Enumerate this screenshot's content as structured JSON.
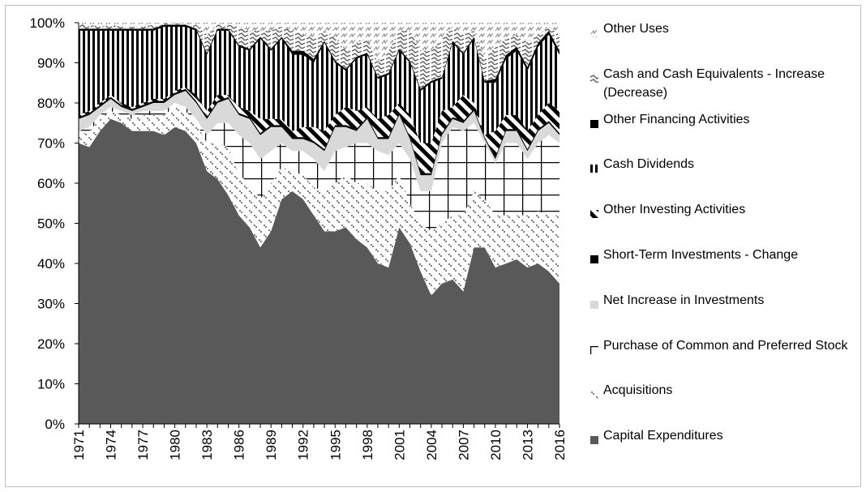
{
  "chart_data": {
    "type": "area",
    "stacked": true,
    "x": [
      1971,
      1972,
      1973,
      1974,
      1975,
      1976,
      1977,
      1978,
      1979,
      1980,
      1981,
      1982,
      1983,
      1984,
      1985,
      1986,
      1987,
      1988,
      1989,
      1990,
      1991,
      1992,
      1993,
      1994,
      1995,
      1996,
      1997,
      1998,
      1999,
      2000,
      2001,
      2002,
      2003,
      2004,
      2005,
      2006,
      2007,
      2008,
      2009,
      2010,
      2011,
      2012,
      2013,
      2014,
      2015,
      2016
    ],
    "xlim": [
      1971,
      2016
    ],
    "xticks": [
      1971,
      1974,
      1977,
      1980,
      1983,
      1986,
      1989,
      1992,
      1995,
      1998,
      2001,
      2004,
      2007,
      2010,
      2013,
      2016
    ],
    "ylim": [
      0,
      100
    ],
    "yticks": [
      {
        "value": 0,
        "label": "0%"
      },
      {
        "value": 10,
        "label": "10%"
      },
      {
        "value": 20,
        "label": "20%"
      },
      {
        "value": 30,
        "label": "30%"
      },
      {
        "value": 40,
        "label": "40%"
      },
      {
        "value": 50,
        "label": "50%"
      },
      {
        "value": 60,
        "label": "60%"
      },
      {
        "value": 70,
        "label": "70%"
      },
      {
        "value": 80,
        "label": "80%"
      },
      {
        "value": 90,
        "label": "90%"
      },
      {
        "value": 100,
        "label": "100%"
      }
    ],
    "legend": "right",
    "series": [
      {
        "name": "Capital Expenditures",
        "color": "#595959",
        "values": [
          70,
          69,
          73,
          76,
          75,
          73,
          73,
          73,
          72,
          74,
          73,
          70,
          63,
          61,
          57,
          52,
          49,
          44,
          48,
          56,
          58,
          56,
          52,
          48,
          48,
          49,
          46,
          44,
          40,
          39,
          49,
          45,
          38,
          32,
          35,
          36,
          33,
          44,
          44,
          39,
          40,
          41,
          39,
          40,
          38,
          35
        ]
      },
      {
        "name": "Acquisitions",
        "color": "#7f7f7f",
        "values": [
          2,
          4,
          3,
          2,
          2,
          3,
          4,
          4,
          5,
          5,
          5,
          5,
          7,
          9,
          12,
          10,
          11,
          12,
          12,
          8,
          5,
          6,
          7,
          10,
          12,
          13,
          14,
          16,
          18,
          19,
          13,
          10,
          12,
          16,
          15,
          16,
          19,
          14,
          12,
          13,
          12,
          11,
          13,
          13,
          14,
          17
        ]
      },
      {
        "name": "Purchase of Common and Preferred Stock",
        "color": "#000000",
        "values": [
          1,
          1,
          1,
          1,
          1,
          1,
          1,
          1,
          1,
          1,
          1,
          1,
          2,
          5,
          6,
          10,
          10,
          10,
          8,
          6,
          5,
          6,
          7,
          5,
          8,
          7,
          10,
          10,
          10,
          9,
          8,
          11,
          8,
          10,
          20,
          22,
          21,
          17,
          14,
          13,
          18,
          18,
          14,
          17,
          20,
          18
        ]
      },
      {
        "name": "Net Increase in Investments",
        "color": "#d9d9d9",
        "values": [
          3,
          3,
          2,
          2,
          1,
          1,
          1,
          2,
          2,
          2,
          4,
          4,
          4,
          5,
          6,
          5,
          6,
          6,
          6,
          4,
          3,
          3,
          4,
          5,
          6,
          5,
          3,
          6,
          3,
          4,
          7,
          5,
          4,
          4,
          2,
          2,
          2,
          3,
          1,
          1,
          3,
          3,
          2,
          3,
          3,
          2
        ]
      },
      {
        "name": "Short-Term Investments - Change",
        "color": "#000000",
        "values": [
          0.5,
          0.5,
          0.5,
          0.5,
          0.5,
          0.5,
          0.5,
          0.5,
          0.5,
          0.5,
          0.5,
          0.5,
          0.5,
          0.5,
          0.5,
          0.5,
          0.5,
          0.5,
          0.5,
          0.5,
          0.5,
          0.5,
          0.5,
          0.5,
          0.5,
          0.5,
          0.5,
          0.5,
          0.5,
          0.5,
          0.5,
          0.5,
          0.5,
          0.5,
          0.5,
          0.5,
          0.5,
          0.5,
          0.5,
          0.5,
          0.5,
          0.5,
          0.5,
          0.5,
          0.5,
          0.5
        ]
      },
      {
        "name": "Other Investing Activities",
        "color": "#000000",
        "values": [
          0.5,
          0.5,
          0.5,
          0.5,
          0.5,
          0.5,
          0.5,
          0.5,
          0.5,
          0.5,
          0.5,
          1.5,
          1.5,
          1.5,
          0.5,
          1.5,
          1.5,
          3.5,
          1.5,
          1.5,
          1.5,
          2.5,
          3.5,
          4.5,
          2.5,
          4.5,
          4.5,
          2.5,
          4.5,
          5.5,
          2.5,
          5.5,
          7.5,
          7.5,
          5.5,
          2.5,
          6.5,
          1.5,
          0.5,
          6.5,
          3.5,
          3.5,
          4.5,
          3.5,
          4.5,
          5.5
        ]
      },
      {
        "name": "Cash Dividends",
        "color": "#000000",
        "values": [
          21,
          20,
          18,
          16,
          18,
          19,
          18,
          17,
          18,
          16,
          15,
          16,
          14,
          16,
          16,
          15,
          15,
          20,
          17,
          20,
          19,
          18,
          16,
          22,
          13,
          9,
          13,
          13,
          10,
          10,
          13,
          13,
          13,
          15,
          8,
          16,
          10,
          16,
          13,
          12,
          14,
          16,
          15,
          17,
          17,
          14
        ]
      },
      {
        "name": "Other Financing Activities",
        "color": "#000000",
        "values": [
          0.5,
          0.5,
          0.5,
          0.5,
          0.5,
          0.5,
          0.5,
          0.5,
          0.5,
          0.5,
          0.5,
          0.5,
          0.5,
          0.5,
          0.5,
          0.5,
          0.5,
          0.5,
          0.5,
          0.5,
          1,
          1,
          1,
          0.5,
          0.5,
          0.5,
          0.5,
          0.5,
          0.5,
          0.5,
          0.5,
          0.5,
          0.5,
          0.5,
          0.5,
          0.5,
          0.5,
          0.5,
          0.5,
          1,
          1,
          1,
          1,
          1,
          1,
          1
        ]
      },
      {
        "name": "Cash and Cash Equivalents - Increase (Decrease)",
        "color": "#606060",
        "values": [
          1,
          1,
          0.5,
          1,
          0.5,
          0.5,
          0.5,
          1,
          0.3,
          0.3,
          0.3,
          1,
          4.5,
          1,
          1,
          4.5,
          4.5,
          1.5,
          4.5,
          2.5,
          5,
          4,
          5,
          2.5,
          5.5,
          4.5,
          3.5,
          3.5,
          3.5,
          5.5,
          4.5,
          7.5,
          9.5,
          7.5,
          9.5,
          3.5,
          4.5,
          1.5,
          5.5,
          8,
          4,
          3,
          6,
          2,
          1,
          4
        ]
      },
      {
        "name": "Other Uses",
        "color": "#808080",
        "values": [
          0.5,
          0.5,
          1,
          0.5,
          1,
          1,
          1,
          0.5,
          0.2,
          0.2,
          0.2,
          0.5,
          3,
          0.5,
          0.5,
          1,
          2,
          2,
          2,
          1,
          2,
          3,
          4,
          2,
          4,
          7,
          5,
          4,
          10,
          7,
          2,
          2,
          7,
          7,
          4,
          1,
          3,
          2,
          9,
          6,
          4,
          3,
          5,
          3,
          1,
          3
        ]
      }
    ]
  }
}
